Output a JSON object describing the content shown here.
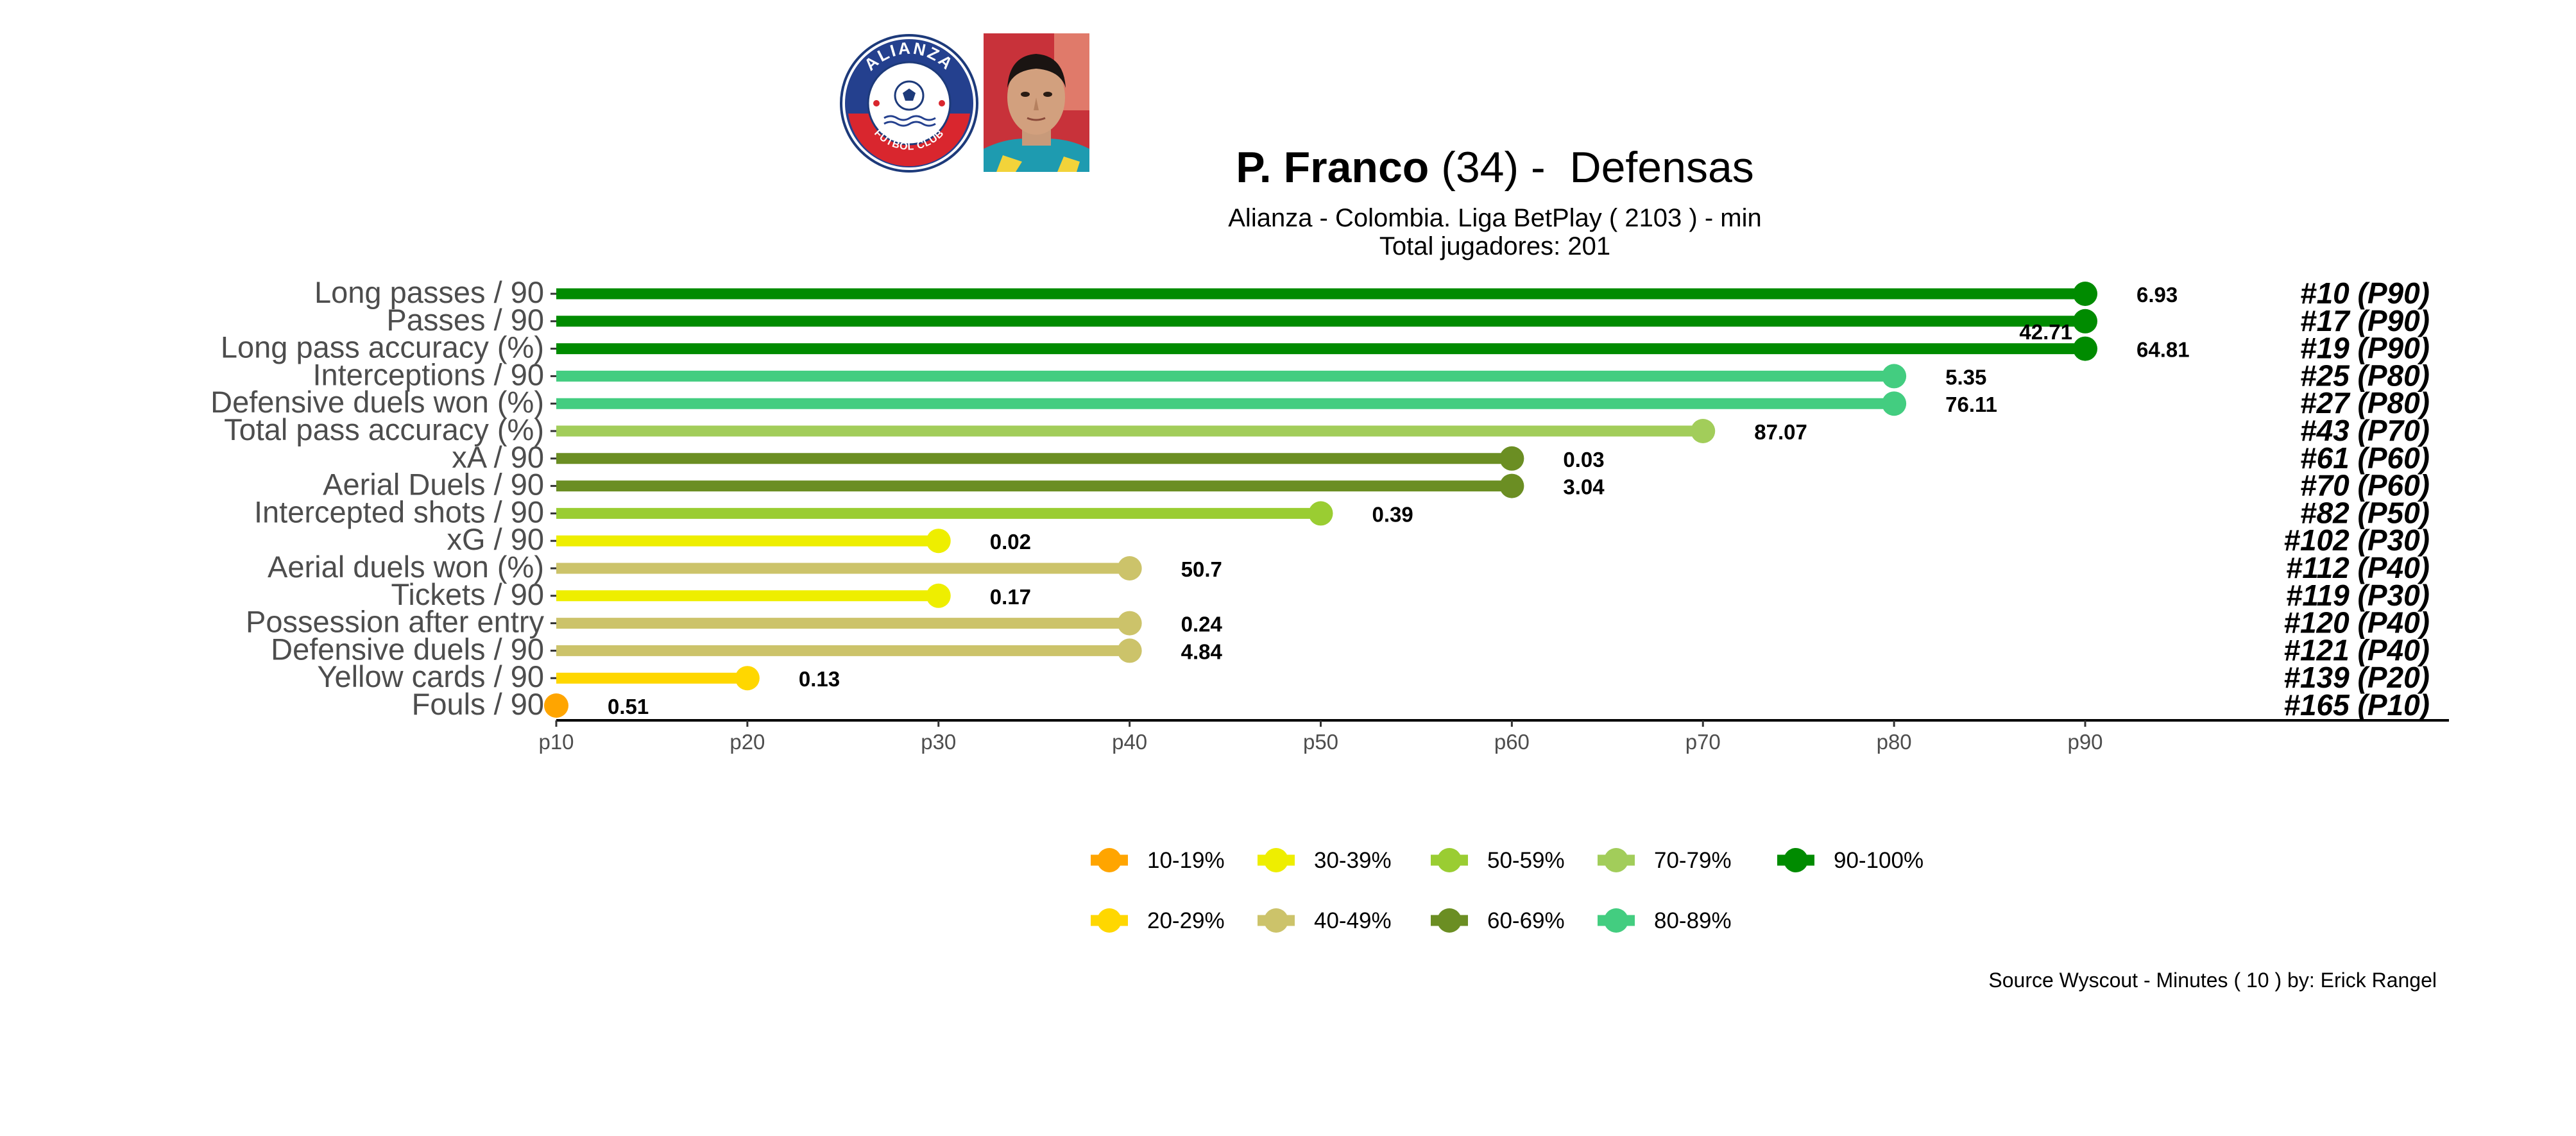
{
  "header": {
    "player_name": "P. Franco",
    "player_age": "(34)",
    "separator": " -  ",
    "position": "Defensas",
    "subtitle_line1": "Alianza  -  Colombia. Liga BetPlay  ( 2103 ) - min",
    "subtitle_line2": "Total jugadores:  201"
  },
  "logo": {
    "top_text": "ALIANZA",
    "bottom_text": "FUTBOL CLUB"
  },
  "caption": "Source Wyscout - Minutes ( 10 ) by: Erick Rangel",
  "colors": {
    "10-19%": "#FFA500",
    "20-29%": "#FFD700",
    "30-39%": "#EEEE00",
    "40-49%": "#CCC36A",
    "50-59%": "#9ACD32",
    "60-69%": "#6B8E23",
    "70-79%": "#A2CD5A",
    "80-89%": "#43CD80",
    "90-100%": "#008B00"
  },
  "chart_data": {
    "type": "lollipop",
    "x_axis": {
      "ticks": [
        "p10",
        "p20",
        "p30",
        "p40",
        "p50",
        "p60",
        "p70",
        "p80",
        "p90"
      ],
      "min": 10,
      "max": 90
    },
    "grid": false,
    "legend_position": "bottom",
    "legend": [
      "10-19%",
      "20-29%",
      "30-39%",
      "40-49%",
      "50-59%",
      "60-69%",
      "70-79%",
      "80-89%",
      "90-100%"
    ],
    "rows": [
      {
        "metric": "Long passes / 90",
        "percentile": 90,
        "value": "6.93",
        "rank": "#10 (P90)",
        "band": "90-100%"
      },
      {
        "metric": "Passes / 90",
        "percentile": 90,
        "value": "42.71",
        "rank": "#17 (P90)",
        "band": "90-100%"
      },
      {
        "metric": "Long pass accuracy (%)",
        "percentile": 90,
        "value": "64.81",
        "rank": "#19 (P90)",
        "band": "90-100%"
      },
      {
        "metric": "Interceptions / 90",
        "percentile": 80,
        "value": "5.35",
        "rank": "#25 (P80)",
        "band": "80-89%"
      },
      {
        "metric": "Defensive duels won (%)",
        "percentile": 80,
        "value": "76.11",
        "rank": "#27 (P80)",
        "band": "80-89%"
      },
      {
        "metric": "Total pass accuracy (%)",
        "percentile": 70,
        "value": "87.07",
        "rank": "#43 (P70)",
        "band": "70-79%"
      },
      {
        "metric": "xA / 90",
        "percentile": 60,
        "value": "0.03",
        "rank": "#61 (P60)",
        "band": "60-69%"
      },
      {
        "metric": "Aerial Duels / 90",
        "percentile": 60,
        "value": "3.04",
        "rank": "#70 (P60)",
        "band": "60-69%"
      },
      {
        "metric": "Intercepted shots / 90",
        "percentile": 50,
        "value": "0.39",
        "rank": "#82 (P50)",
        "band": "50-59%"
      },
      {
        "metric": "xG / 90",
        "percentile": 30,
        "value": "0.02",
        "rank": "#102 (P30)",
        "band": "30-39%"
      },
      {
        "metric": "Aerial duels won (%)",
        "percentile": 40,
        "value": "50.7",
        "rank": "#112 (P40)",
        "band": "40-49%"
      },
      {
        "metric": "Tickets / 90",
        "percentile": 30,
        "value": "0.17",
        "rank": "#119 (P30)",
        "band": "30-39%"
      },
      {
        "metric": "Possession after entry",
        "percentile": 40,
        "value": "0.24",
        "rank": "#120 (P40)",
        "band": "40-49%"
      },
      {
        "metric": "Defensive duels / 90",
        "percentile": 40,
        "value": "4.84",
        "rank": "#121 (P40)",
        "band": "40-49%"
      },
      {
        "metric": "Yellow cards / 90",
        "percentile": 20,
        "value": "0.13",
        "rank": "#139 (P20)",
        "band": "20-29%"
      },
      {
        "metric": "Fouls / 90",
        "percentile": 10,
        "value": "0.51",
        "rank": "#165 (P10)",
        "band": "10-19%"
      }
    ]
  }
}
